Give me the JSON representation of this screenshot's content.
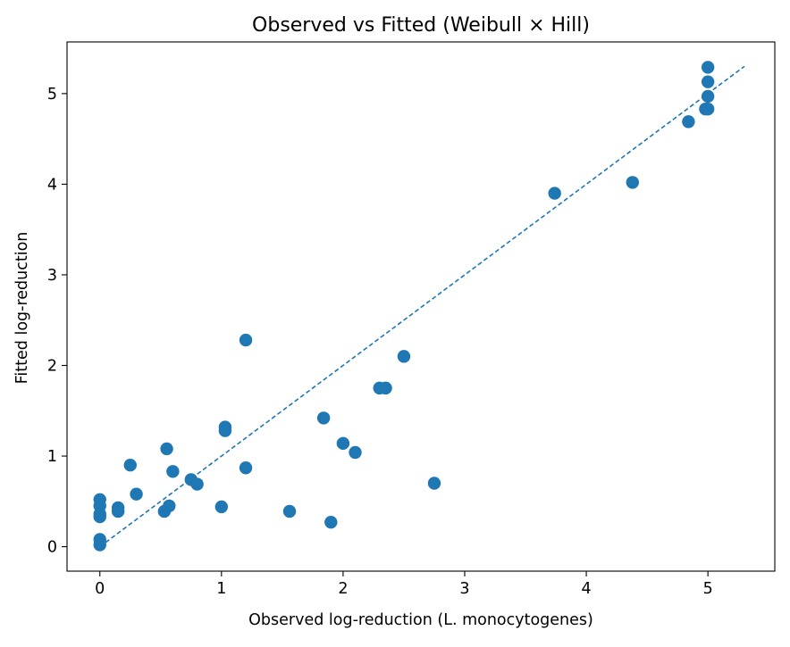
{
  "chart_data": {
    "type": "scatter",
    "title": "Observed vs Fitted (Weibull × Hill)",
    "xlabel": "Observed log-reduction (L. monocytogenes)",
    "ylabel": "Fitted log-reduction",
    "xlim": [
      -0.27,
      5.55
    ],
    "ylim": [
      -0.27,
      5.57
    ],
    "xticks": [
      0,
      1,
      2,
      3,
      4,
      5
    ],
    "yticks": [
      0,
      1,
      2,
      3,
      4,
      5
    ],
    "grid": false,
    "marker_color": "#1f77b4",
    "reference_line": {
      "style": "dashed",
      "color": "#1f77b4",
      "points": [
        [
          0,
          0
        ],
        [
          5.3,
          5.3
        ]
      ]
    },
    "series": [
      {
        "points": [
          [
            0,
            0.52
          ],
          [
            0,
            0.45
          ],
          [
            0,
            0.36
          ],
          [
            0,
            0.33
          ],
          [
            0,
            0.08
          ],
          [
            0,
            0.02
          ],
          [
            0.15,
            0.43
          ],
          [
            0.15,
            0.39
          ],
          [
            0.25,
            0.9
          ],
          [
            0.3,
            0.58
          ],
          [
            0.53,
            0.39
          ],
          [
            0.55,
            1.08
          ],
          [
            0.57,
            0.45
          ],
          [
            0.6,
            0.83
          ],
          [
            0.75,
            0.74
          ],
          [
            0.8,
            0.69
          ],
          [
            1.0,
            0.44
          ],
          [
            1.03,
            1.32
          ],
          [
            1.03,
            1.28
          ],
          [
            1.2,
            2.28
          ],
          [
            1.2,
            0.87
          ],
          [
            1.56,
            0.39
          ],
          [
            1.84,
            1.42
          ],
          [
            1.9,
            0.27
          ],
          [
            2.0,
            1.14
          ],
          [
            2.1,
            1.04
          ],
          [
            2.3,
            1.75
          ],
          [
            2.35,
            1.75
          ],
          [
            2.5,
            2.1
          ],
          [
            2.75,
            0.7
          ],
          [
            3.74,
            3.9
          ],
          [
            4.38,
            4.02
          ],
          [
            4.84,
            4.69
          ],
          [
            4.98,
            4.83
          ],
          [
            5.0,
            4.83
          ],
          [
            5.0,
            4.97
          ],
          [
            5.0,
            5.13
          ],
          [
            5.0,
            5.29
          ]
        ]
      }
    ]
  }
}
